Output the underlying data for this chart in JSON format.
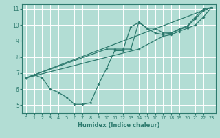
{
  "xlabel": "Humidex (Indice chaleur)",
  "bg_color": "#b2ddd4",
  "grid_color": "#ffffff",
  "line_color": "#2d7a6e",
  "xlim": [
    -0.5,
    23.5
  ],
  "ylim": [
    4.5,
    11.3
  ],
  "xticks": [
    0,
    1,
    2,
    3,
    4,
    5,
    6,
    7,
    8,
    9,
    10,
    11,
    12,
    13,
    14,
    15,
    16,
    17,
    18,
    19,
    20,
    21,
    22,
    23
  ],
  "yticks": [
    5,
    6,
    7,
    8,
    9,
    10,
    11
  ],
  "lines": [
    {
      "x": [
        0,
        1,
        2,
        3,
        4,
        5,
        6,
        7,
        8,
        9,
        10,
        11,
        12,
        13,
        14,
        15,
        16,
        17,
        18,
        19,
        20,
        21,
        22,
        23
      ],
      "y": [
        6.7,
        6.9,
        6.7,
        6.0,
        5.8,
        5.5,
        5.05,
        5.05,
        5.15,
        6.3,
        7.3,
        8.4,
        8.4,
        9.9,
        10.15,
        9.8,
        9.5,
        9.4,
        9.5,
        9.75,
        9.95,
        10.5,
        11.0,
        11.1
      ]
    },
    {
      "x": [
        0,
        23
      ],
      "y": [
        6.7,
        11.1
      ]
    },
    {
      "x": [
        0,
        14,
        17,
        18,
        19,
        20,
        21,
        22,
        23
      ],
      "y": [
        6.7,
        8.5,
        9.3,
        9.4,
        9.6,
        9.8,
        10.0,
        10.5,
        11.1
      ]
    },
    {
      "x": [
        0,
        10,
        11,
        12,
        13,
        14,
        15,
        16,
        17,
        18,
        19,
        20,
        21,
        22,
        23
      ],
      "y": [
        6.7,
        8.5,
        8.5,
        8.5,
        8.5,
        10.2,
        9.8,
        9.8,
        9.5,
        9.5,
        9.7,
        9.9,
        10.4,
        10.9,
        11.1
      ]
    }
  ]
}
